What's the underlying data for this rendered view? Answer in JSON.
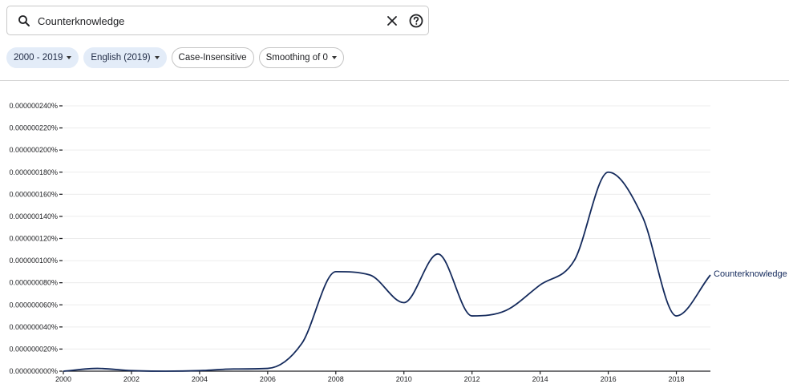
{
  "search": {
    "query": "Counterknowledge"
  },
  "filters": {
    "year_range": "2000 - 2019",
    "corpus": "English (2019)",
    "case": "Case-Insensitive",
    "smoothing": "Smoothing of 0"
  },
  "colors": {
    "series": "#142a5c",
    "chip_fill": "#e3ecf8"
  },
  "chart_data": {
    "type": "line",
    "xlim": [
      2000,
      2019
    ],
    "ylim": [
      0,
      2.4e-07
    ],
    "x_ticks": [
      2000,
      2002,
      2004,
      2006,
      2008,
      2010,
      2012,
      2014,
      2016,
      2018
    ],
    "x_tick_labels": [
      "2000",
      "2002",
      "2004",
      "2006",
      "2008",
      "2010",
      "2012",
      "2014",
      "2016",
      "2018"
    ],
    "y_ticks": [
      0,
      2e-08,
      4e-08,
      6e-08,
      8e-08,
      1e-07,
      1.2e-07,
      1.4e-07,
      1.6e-07,
      1.8e-07,
      2e-07,
      2.2e-07,
      2.4e-07
    ],
    "y_tick_labels": [
      "0.000000000%",
      "0.000000020%",
      "0.000000040%",
      "0.000000060%",
      "0.000000080%",
      "0.000000100%",
      "0.000000120%",
      "0.000000140%",
      "0.000000160%",
      "0.000000180%",
      "0.000000200%",
      "0.000000220%",
      "0.000000240%"
    ],
    "grid": true,
    "series": [
      {
        "name": "Counterknowledge",
        "x": [
          2000,
          2001,
          2002,
          2003,
          2004,
          2005,
          2006,
          2007,
          2008,
          2009,
          2010,
          2011,
          2012,
          2013,
          2014,
          2015,
          2016,
          2017,
          2018,
          2019
        ],
        "values": [
          0,
          2.5e-09,
          5e-10,
          0,
          5e-10,
          2e-09,
          2.5e-09,
          2.5e-08,
          9e-08,
          8.7e-08,
          6.2e-08,
          1.06e-07,
          5e-08,
          5.5e-08,
          7.8e-08,
          1e-07,
          1.8e-07,
          1.4e-07,
          5e-08,
          8.7e-08
        ]
      }
    ]
  }
}
